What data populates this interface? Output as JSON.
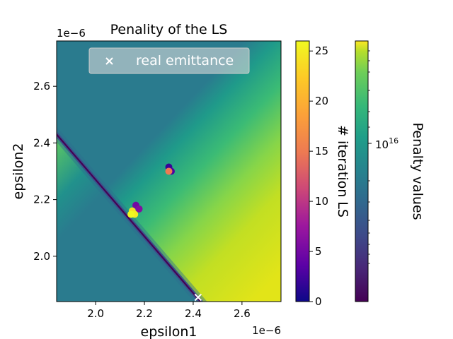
{
  "chart_data": {
    "type": "scatter",
    "title": "Penality of the LS",
    "xlabel": "epsilon1",
    "ylabel": "epsilon2",
    "x_offset_label": "1e−6",
    "y_offset_label": "1e−6",
    "xlim": [
      1.84,
      2.76
    ],
    "ylim": [
      1.84,
      2.76
    ],
    "x_ticks": [
      2.0,
      2.2,
      2.4,
      2.6
    ],
    "x_tick_labels": [
      "2.0",
      "2.2",
      "2.4",
      "2.6"
    ],
    "y_ticks": [
      2.0,
      2.2,
      2.4,
      2.6
    ],
    "y_tick_labels": [
      "2.0",
      "2.2",
      "2.4",
      "2.6"
    ],
    "scale_exponent": "1e-6",
    "grid": false,
    "legend": {
      "placement": "upper-center",
      "entries": [
        "real emittance"
      ]
    },
    "background": {
      "kind": "penalty heatmap",
      "minimum_valley_line": {
        "x": [
          1.84,
          2.42
        ],
        "y": [
          2.43,
          1.85
        ]
      },
      "colormap": "viridis"
    },
    "series": [
      {
        "name": "real emittance",
        "marker": "x",
        "color": "#ffffff",
        "points": [
          {
            "x": 2.42,
            "y": 1.855
          }
        ]
      },
      {
        "marker": "o",
        "colored_by": "iteration LS",
        "points": [
          {
            "x": 2.3,
            "y": 2.315,
            "iter": 2
          },
          {
            "x": 2.31,
            "y": 2.3,
            "iter": 3
          },
          {
            "x": 2.3,
            "y": 2.3,
            "iter": 15
          },
          {
            "x": 2.165,
            "y": 2.18,
            "iter": 5
          },
          {
            "x": 2.178,
            "y": 2.167,
            "iter": 6
          },
          {
            "x": 2.15,
            "y": 2.16,
            "iter": 24
          },
          {
            "x": 2.16,
            "y": 2.148,
            "iter": 25
          },
          {
            "x": 2.145,
            "y": 2.148,
            "iter": 26
          }
        ]
      }
    ],
    "colorbars": [
      {
        "label": "# iteration LS",
        "colormap": "plasma",
        "range": [
          0,
          26
        ],
        "ticks": [
          0,
          5,
          10,
          15,
          20,
          25
        ],
        "tick_labels": [
          "0",
          "5",
          "10",
          "15",
          "20",
          "25"
        ]
      },
      {
        "label": "Penalty values",
        "colormap": "viridis",
        "scale": "log",
        "major_tick_label_base": "10",
        "major_tick_label_exp": "16"
      }
    ]
  }
}
